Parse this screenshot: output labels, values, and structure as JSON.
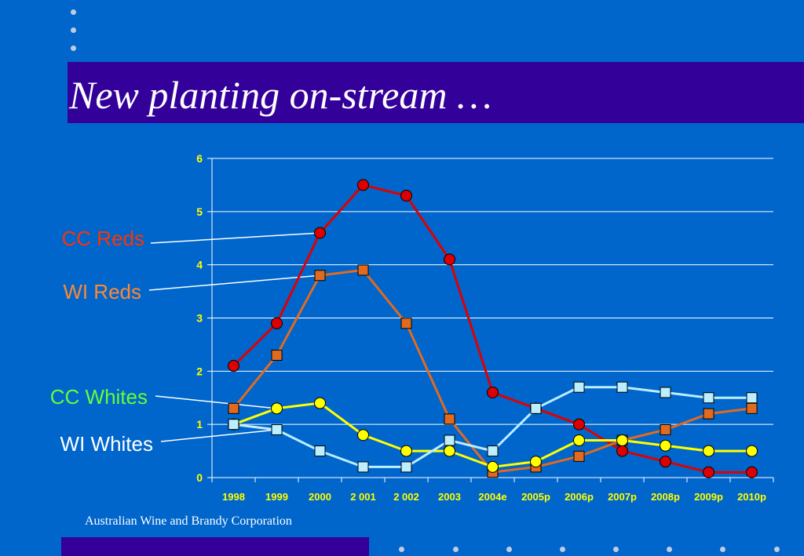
{
  "slide": {
    "title": "New planting on-stream …",
    "footer": "Australian Wine and Brandy Corporation",
    "colors": {
      "background": "#0066CC",
      "band": "#330099",
      "title_text": "#FFFFFF",
      "tick_text": "#FFFF00",
      "bullet_dots": "#C0CCDD"
    }
  },
  "chart_data": {
    "type": "line",
    "categories": [
      "1998",
      "1999",
      "2000",
      "2 001",
      "2 002",
      "2003",
      "2004e",
      "2005p",
      "2006p",
      "2007p",
      "2008p",
      "2009p",
      "2010p"
    ],
    "ylim": [
      0,
      6
    ],
    "yticks": [
      "0",
      "1",
      "2",
      "3",
      "4",
      "5",
      "6"
    ],
    "grid": true,
    "legend": "callout labels on left",
    "series": [
      {
        "name": "CC Reds",
        "color": "#DD0000",
        "label_color": "#FF3300",
        "marker": "circle",
        "values": [
          2.1,
          2.9,
          4.6,
          5.5,
          5.3,
          4.1,
          1.6,
          1.3,
          1.0,
          0.5,
          0.3,
          0.1,
          0.1
        ]
      },
      {
        "name": "WI Reds",
        "color": "#E06A20",
        "label_color": "#FF8833",
        "marker": "square",
        "values": [
          1.3,
          2.3,
          3.8,
          3.9,
          2.9,
          1.1,
          0.1,
          0.2,
          0.4,
          0.7,
          0.9,
          1.2,
          1.3
        ]
      },
      {
        "name": "CC Whites",
        "color": "#FFFF00",
        "label_color": "#66FF33",
        "marker": "circle",
        "values": [
          1.0,
          1.3,
          1.4,
          0.8,
          0.5,
          0.5,
          0.2,
          0.3,
          0.7,
          0.7,
          0.6,
          0.5,
          0.5
        ]
      },
      {
        "name": "WI Whites",
        "color": "#BBEEFF",
        "label_color": "#FFFFFF",
        "marker": "square",
        "values": [
          1.0,
          0.9,
          0.5,
          0.2,
          0.2,
          0.7,
          0.5,
          1.3,
          1.7,
          1.7,
          1.6,
          1.5,
          1.5
        ]
      }
    ]
  }
}
